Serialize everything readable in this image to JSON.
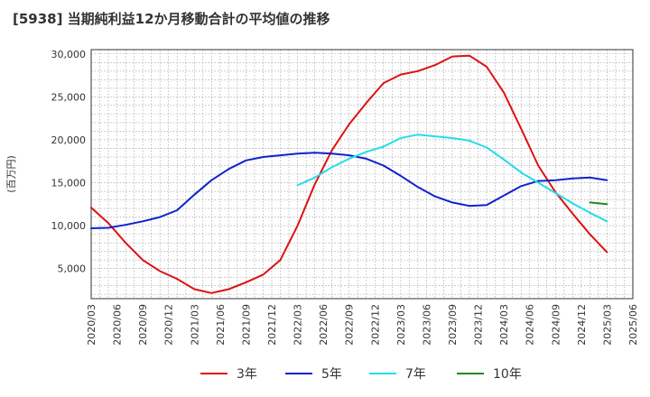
{
  "chart_data": {
    "type": "line",
    "title": "[5938]  当期純利益12か月移動合計の平均値の推移",
    "ylabel": "(百万円)",
    "ylim": [
      1500,
      30500
    ],
    "yticks": [
      5000,
      10000,
      15000,
      20000,
      25000,
      30000
    ],
    "ytick_labels": [
      "5,000",
      "10,000",
      "15,000",
      "20,000",
      "25,000",
      "30,000"
    ],
    "xticks": [
      "2020/03",
      "2020/06",
      "2020/09",
      "2020/12",
      "2021/03",
      "2021/06",
      "2021/09",
      "2021/12",
      "2022/03",
      "2022/06",
      "2022/09",
      "2022/12",
      "2023/03",
      "2023/06",
      "2023/09",
      "2023/12",
      "2024/03",
      "2024/06",
      "2024/09",
      "2024/12",
      "2025/03",
      "2025/06"
    ],
    "grid": true,
    "legend_position": "bottom",
    "colors": {
      "3年": "#dd1111",
      "5年": "#1122cc",
      "7年": "#22ddee",
      "10年": "#228822"
    },
    "series": [
      {
        "name": "3年",
        "color": "#dd1111",
        "x": [
          "2020/03",
          "2020/05",
          "2020/07",
          "2020/09",
          "2020/11",
          "2021/01",
          "2021/03",
          "2021/05",
          "2021/07",
          "2021/09",
          "2021/11",
          "2022/01",
          "2022/03",
          "2022/05",
          "2022/07",
          "2022/09",
          "2022/11",
          "2023/01",
          "2023/03",
          "2023/05",
          "2023/07",
          "2023/09",
          "2023/11",
          "2024/01",
          "2024/03",
          "2024/05",
          "2024/07",
          "2024/09",
          "2024/11",
          "2025/01",
          "2025/03"
        ],
        "values": [
          12100,
          10300,
          8000,
          6000,
          4700,
          3800,
          2600,
          2150,
          2600,
          3400,
          4300,
          6000,
          10000,
          14800,
          18800,
          21800,
          24300,
          26600,
          27600,
          28000,
          28700,
          29700,
          29800,
          28500,
          25500,
          21300,
          17000,
          13900,
          11400,
          9000,
          6900
        ]
      },
      {
        "name": "5年",
        "color": "#1122cc",
        "x": [
          "2020/03",
          "2020/05",
          "2020/07",
          "2020/09",
          "2020/11",
          "2021/01",
          "2021/03",
          "2021/05",
          "2021/07",
          "2021/09",
          "2021/11",
          "2022/01",
          "2022/03",
          "2022/05",
          "2022/07",
          "2022/09",
          "2022/11",
          "2023/01",
          "2023/03",
          "2023/05",
          "2023/07",
          "2023/09",
          "2023/11",
          "2024/01",
          "2024/03",
          "2024/05",
          "2024/07",
          "2024/09",
          "2024/11",
          "2025/01",
          "2025/03"
        ],
        "values": [
          9700,
          9750,
          10100,
          10500,
          11000,
          11800,
          13600,
          15300,
          16600,
          17600,
          18000,
          18200,
          18400,
          18500,
          18400,
          18200,
          17800,
          17000,
          15800,
          14500,
          13400,
          12700,
          12300,
          12400,
          13500,
          14600,
          15200,
          15300,
          15500,
          15600,
          15300
        ]
      },
      {
        "name": "7年",
        "color": "#22ddee",
        "x": [
          "2022/03",
          "2022/05",
          "2022/07",
          "2022/09",
          "2022/11",
          "2023/01",
          "2023/03",
          "2023/05",
          "2023/07",
          "2023/09",
          "2023/11",
          "2024/01",
          "2024/03",
          "2024/05",
          "2024/07",
          "2024/09",
          "2024/11",
          "2025/01",
          "2025/03"
        ],
        "values": [
          14700,
          15600,
          16800,
          17800,
          18600,
          19200,
          20200,
          20600,
          20400,
          20200,
          19900,
          19100,
          17700,
          16200,
          15000,
          13800,
          12600,
          11500,
          10500
        ]
      },
      {
        "name": "10年",
        "color": "#228822",
        "x": [
          "2025/01",
          "2025/03"
        ],
        "values": [
          12700,
          12500
        ]
      }
    ]
  }
}
